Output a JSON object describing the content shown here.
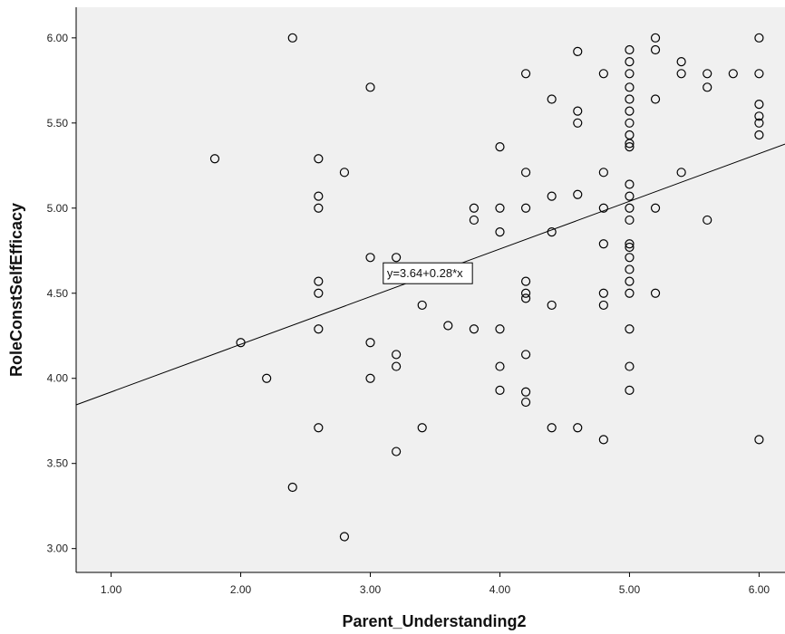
{
  "chart_data": {
    "type": "scatter",
    "xlabel": "Parent_Understanding2",
    "ylabel": "RoleConstSelfEfficacy",
    "x_ticks": [
      "1.00",
      "2.00",
      "3.00",
      "4.00",
      "5.00",
      "6.00"
    ],
    "y_ticks": [
      "3.00",
      "3.50",
      "4.00",
      "4.50",
      "5.00",
      "5.50",
      "6.00"
    ],
    "xlim": [
      0.73,
      6.2
    ],
    "ylim": [
      2.86,
      6.18
    ],
    "grid": false,
    "legend": "none",
    "plot_background": "#f0f0f0",
    "marker_color": "#000000",
    "fit_line": {
      "intercept": 3.64,
      "slope": 0.28,
      "label": "y=3.64+0.28*x",
      "label_at": [
        3.1,
        4.62
      ]
    },
    "points": [
      [
        1.8,
        5.29
      ],
      [
        2.0,
        4.21
      ],
      [
        2.2,
        4.0
      ],
      [
        2.4,
        6.0
      ],
      [
        2.4,
        3.36
      ],
      [
        2.6,
        5.29
      ],
      [
        2.6,
        5.07
      ],
      [
        2.6,
        5.0
      ],
      [
        2.6,
        4.57
      ],
      [
        2.6,
        4.5
      ],
      [
        2.6,
        4.29
      ],
      [
        2.6,
        3.71
      ],
      [
        2.8,
        5.21
      ],
      [
        2.8,
        3.07
      ],
      [
        3.0,
        5.71
      ],
      [
        3.0,
        4.71
      ],
      [
        3.0,
        4.21
      ],
      [
        3.0,
        4.0
      ],
      [
        3.2,
        4.71
      ],
      [
        3.2,
        4.14
      ],
      [
        3.2,
        4.07
      ],
      [
        3.2,
        3.57
      ],
      [
        3.4,
        4.43
      ],
      [
        3.4,
        3.71
      ],
      [
        3.6,
        4.31
      ],
      [
        3.8,
        5.0
      ],
      [
        3.8,
        4.93
      ],
      [
        3.8,
        4.29
      ],
      [
        4.0,
        5.36
      ],
      [
        4.0,
        5.0
      ],
      [
        4.0,
        4.86
      ],
      [
        4.0,
        4.29
      ],
      [
        4.0,
        4.07
      ],
      [
        4.0,
        3.93
      ],
      [
        4.2,
        5.79
      ],
      [
        4.2,
        5.21
      ],
      [
        4.2,
        5.0
      ],
      [
        4.2,
        4.57
      ],
      [
        4.2,
        4.5
      ],
      [
        4.2,
        4.47
      ],
      [
        4.2,
        4.14
      ],
      [
        4.2,
        3.92
      ],
      [
        4.2,
        3.86
      ],
      [
        4.4,
        5.64
      ],
      [
        4.4,
        5.07
      ],
      [
        4.4,
        4.86
      ],
      [
        4.4,
        4.43
      ],
      [
        4.4,
        3.71
      ],
      [
        4.6,
        5.92
      ],
      [
        4.6,
        5.57
      ],
      [
        4.6,
        5.5
      ],
      [
        4.6,
        5.08
      ],
      [
        4.6,
        3.71
      ],
      [
        4.8,
        5.79
      ],
      [
        4.8,
        5.21
      ],
      [
        4.8,
        5.0
      ],
      [
        4.8,
        4.79
      ],
      [
        4.8,
        4.5
      ],
      [
        4.8,
        4.43
      ],
      [
        4.8,
        3.64
      ],
      [
        5.0,
        5.93
      ],
      [
        5.0,
        5.86
      ],
      [
        5.0,
        5.79
      ],
      [
        5.0,
        5.71
      ],
      [
        5.0,
        5.64
      ],
      [
        5.0,
        5.57
      ],
      [
        5.0,
        5.5
      ],
      [
        5.0,
        5.43
      ],
      [
        5.0,
        5.38
      ],
      [
        5.0,
        5.36
      ],
      [
        5.0,
        5.14
      ],
      [
        5.0,
        5.07
      ],
      [
        5.0,
        5.0
      ],
      [
        5.0,
        4.93
      ],
      [
        5.0,
        4.79
      ],
      [
        5.0,
        4.77
      ],
      [
        5.0,
        4.71
      ],
      [
        5.0,
        4.64
      ],
      [
        5.0,
        4.57
      ],
      [
        5.0,
        4.5
      ],
      [
        5.0,
        4.29
      ],
      [
        5.0,
        4.07
      ],
      [
        5.0,
        3.93
      ],
      [
        5.2,
        6.0
      ],
      [
        5.2,
        5.93
      ],
      [
        5.2,
        5.64
      ],
      [
        5.2,
        5.0
      ],
      [
        5.2,
        4.5
      ],
      [
        5.4,
        5.86
      ],
      [
        5.4,
        5.79
      ],
      [
        5.4,
        5.21
      ],
      [
        5.6,
        5.79
      ],
      [
        5.6,
        5.71
      ],
      [
        5.6,
        4.93
      ],
      [
        5.8,
        5.79
      ],
      [
        6.0,
        6.0
      ],
      [
        6.0,
        5.79
      ],
      [
        6.0,
        5.61
      ],
      [
        6.0,
        5.54
      ],
      [
        6.0,
        5.5
      ],
      [
        6.0,
        5.43
      ],
      [
        6.0,
        3.64
      ]
    ]
  }
}
